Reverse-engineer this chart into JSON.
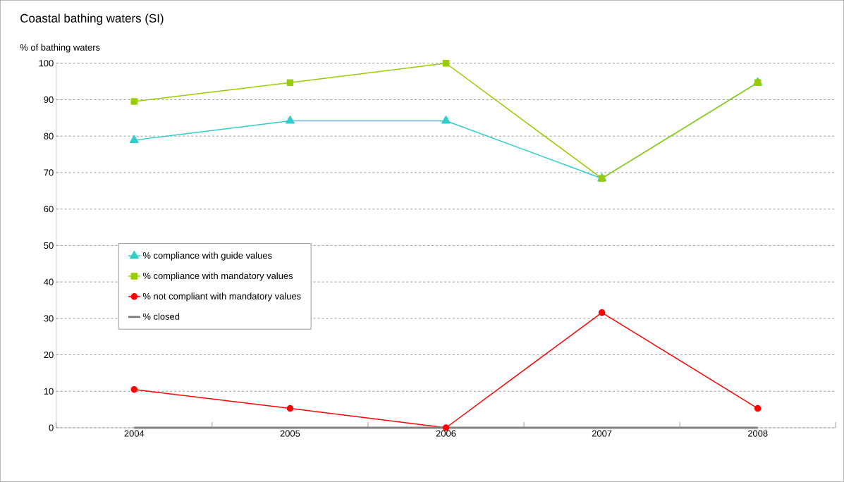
{
  "chart_data": {
    "type": "line",
    "title": "Coastal bathing waters (SI)",
    "ylabel": "% of bathing waters",
    "categories": [
      "2004",
      "2005",
      "2006",
      "2007",
      "2008"
    ],
    "series": [
      {
        "name": "% compliance with guide values",
        "color": "#33cccc",
        "marker": "triangle",
        "values": [
          78.9,
          84.2,
          84.2,
          68.4,
          94.7
        ]
      },
      {
        "name": "% compliance with mandatory values",
        "color": "#99cc00",
        "marker": "square",
        "values": [
          89.5,
          94.7,
          100,
          68.4,
          94.7
        ]
      },
      {
        "name": "% not compliant with mandatory values",
        "color": "#ff0000",
        "marker": "circle",
        "values": [
          10.5,
          5.3,
          0,
          31.6,
          5.3
        ]
      },
      {
        "name": "% closed",
        "color": "#808080",
        "marker": "none",
        "values": [
          0,
          0,
          0,
          0,
          0
        ]
      }
    ],
    "ylim": [
      0,
      100
    ],
    "yticks": [
      0,
      10,
      20,
      30,
      40,
      50,
      60,
      70,
      80,
      90,
      100
    ],
    "grid": "y",
    "legend": "left",
    "line_style": "solid"
  }
}
